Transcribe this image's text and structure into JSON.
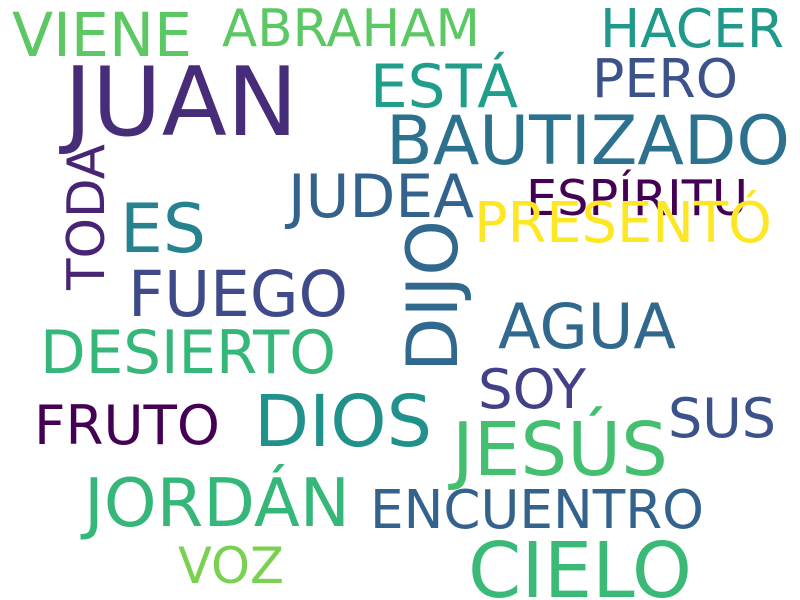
{
  "words": [
    {
      "text": "VIENE",
      "color": "#5cc863"
    },
    {
      "text": "ABRAHAM",
      "color": "#5cc863"
    },
    {
      "text": "HACER",
      "color": "#1f9a8a"
    },
    {
      "text": "JUAN",
      "color": "#472c7a"
    },
    {
      "text": "ESTÁ",
      "color": "#1f9e89"
    },
    {
      "text": "PERO",
      "color": "#3b528b"
    },
    {
      "text": "BAUTIZADO",
      "color": "#2c728e"
    },
    {
      "text": "TODA",
      "color": "#482475"
    },
    {
      "text": "JUDEA",
      "color": "#33638d"
    },
    {
      "text": "ESPÍRITU",
      "color": "#440154"
    },
    {
      "text": "ES",
      "color": "#26828e"
    },
    {
      "text": "PRESENTÓ",
      "color": "#fde725"
    },
    {
      "text": "FUEGO",
      "color": "#3e4a89"
    },
    {
      "text": "DIJO",
      "color": "#31688e"
    },
    {
      "text": "AGUA",
      "color": "#31688e"
    },
    {
      "text": "DESIERTO",
      "color": "#35b779"
    },
    {
      "text": "SOY",
      "color": "#424086"
    },
    {
      "text": "FRUTO",
      "color": "#440154"
    },
    {
      "text": "DIOS",
      "color": "#21918c"
    },
    {
      "text": "SUS",
      "color": "#3b528b"
    },
    {
      "text": "JESÚS",
      "color": "#44bf70"
    },
    {
      "text": "JORDÁN",
      "color": "#35b779"
    },
    {
      "text": "ENCUENTRO",
      "color": "#33638d"
    },
    {
      "text": "VOZ",
      "color": "#7ad151"
    },
    {
      "text": "CIELO",
      "color": "#3aba76"
    }
  ]
}
